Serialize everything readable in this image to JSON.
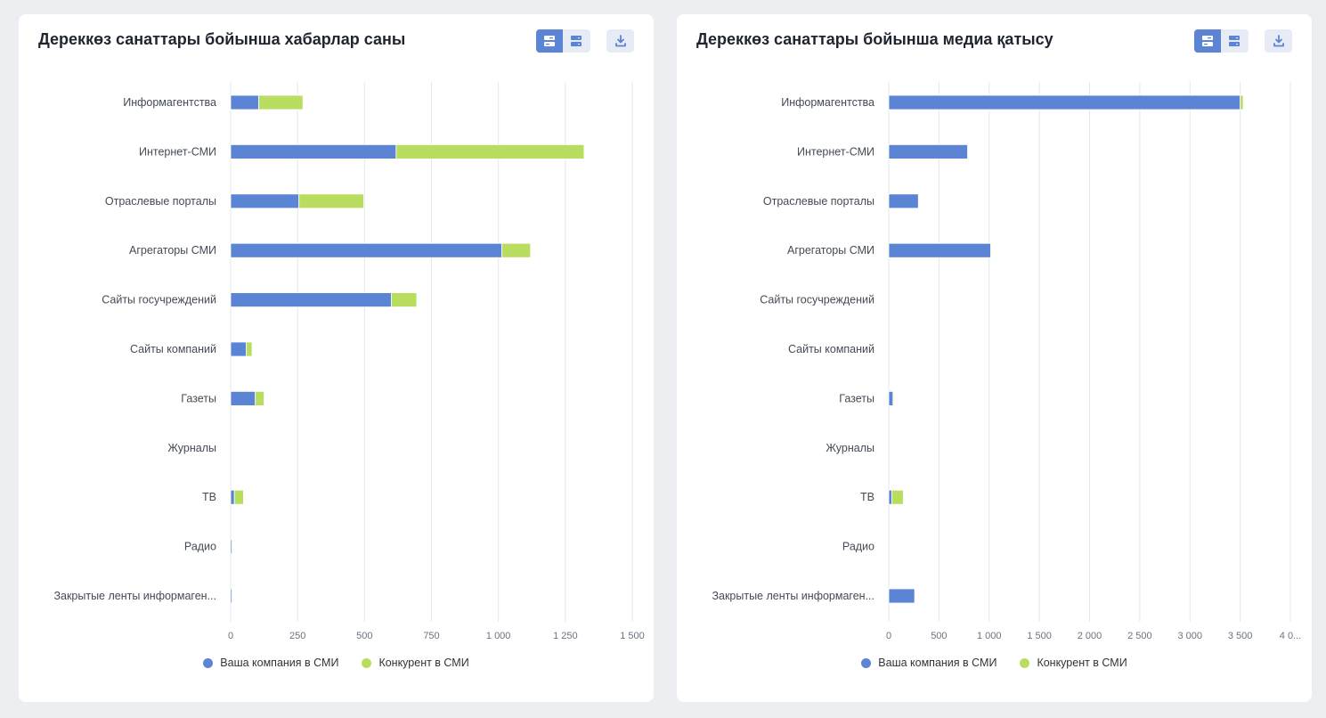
{
  "colors": {
    "company": "#5b84d4",
    "competitor": "#b9dd5f"
  },
  "icons": {
    "toggle_stacked": "stacked-bars-icon",
    "toggle_grouped": "grouped-bars-icon",
    "download": "download-icon"
  },
  "chart_data": [
    {
      "type": "bar",
      "orientation": "horizontal",
      "stacked": true,
      "title": "Дереккөз санаттары бойынша хабарлар саны",
      "categories": [
        "Информагентства",
        "Интернет-СМИ",
        "Отраслевые порталы",
        "Агрегаторы СМИ",
        "Сайты госучреждений",
        "Сайты компаний",
        "Газеты",
        "Журналы",
        "ТВ",
        "Радио",
        "Закрытые ленты информаген..."
      ],
      "series": [
        {
          "name": "Ваша компания в СМИ",
          "values": [
            105,
            618,
            255,
            1013,
            600,
            58,
            92,
            0,
            14,
            2,
            5
          ]
        },
        {
          "name": "Конкурент в СМИ",
          "values": [
            165,
            702,
            242,
            107,
            95,
            22,
            33,
            0,
            34,
            0,
            0
          ]
        }
      ],
      "xlim": [
        0,
        1500
      ],
      "x_ticks": [
        0,
        250,
        500,
        750,
        1000,
        1250,
        1500
      ],
      "x_tick_labels": [
        "0",
        "250",
        "500",
        "750",
        "1 000",
        "1 250",
        "1 500"
      ],
      "grid": true,
      "legend": "bottom-center"
    },
    {
      "type": "bar",
      "orientation": "horizontal",
      "stacked": true,
      "title": "Дереккөз санаттары бойынша медиа қатысу",
      "categories": [
        "Информагентства",
        "Интернет-СМИ",
        "Отраслевые порталы",
        "Агрегаторы СМИ",
        "Сайты госучреждений",
        "Сайты компаний",
        "Газеты",
        "Журналы",
        "ТВ",
        "Радио",
        "Закрытые ленты информаген..."
      ],
      "series": [
        {
          "name": "Ваша компания в СМИ",
          "values": [
            3500,
            785,
            295,
            1015,
            0,
            0,
            42,
            0,
            30,
            0,
            258
          ]
        },
        {
          "name": "Конкурент в СМИ",
          "values": [
            30,
            0,
            0,
            0,
            0,
            0,
            0,
            0,
            115,
            0,
            0
          ]
        }
      ],
      "xlim": [
        0,
        4000
      ],
      "x_ticks": [
        0,
        500,
        1000,
        1500,
        2000,
        2500,
        3000,
        3500,
        4000
      ],
      "x_tick_labels": [
        "0",
        "500",
        "1 000",
        "1 500",
        "2 000",
        "2 500",
        "3 000",
        "3 500",
        "4 0..."
      ],
      "grid": true,
      "legend": "bottom-center"
    }
  ]
}
